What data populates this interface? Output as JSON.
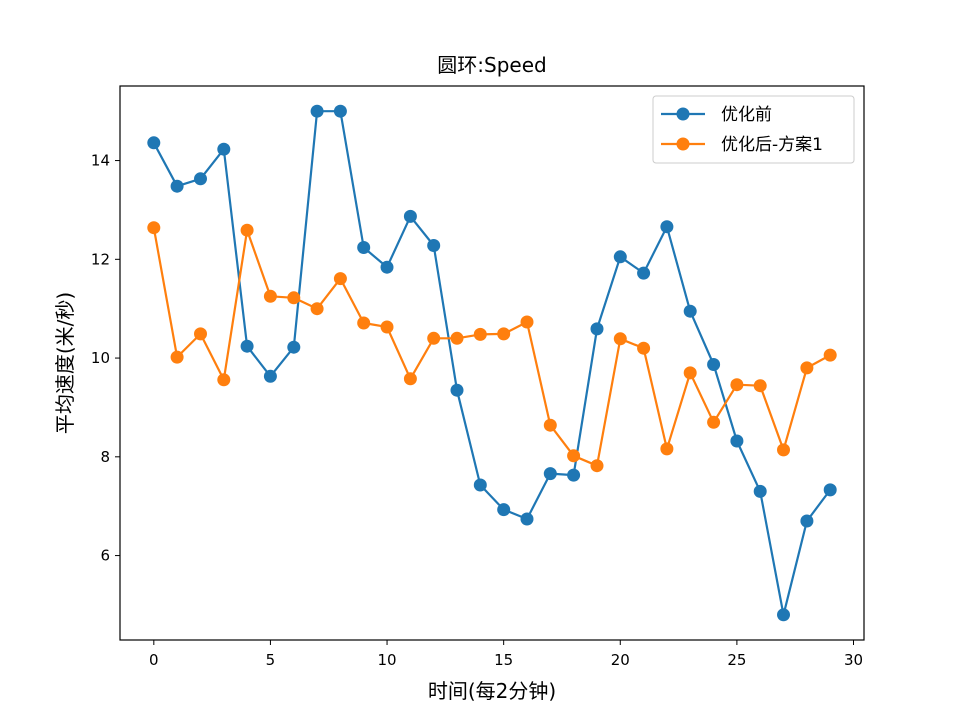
{
  "chart_data": {
    "type": "line",
    "title": "圆环:Speed",
    "xlabel": "时间(每2分钟)",
    "ylabel": "平均速度(米/秒)",
    "xlim": [
      -1.45,
      30.45
    ],
    "ylim": [
      4.29,
      15.51
    ],
    "xticks": [
      0,
      5,
      10,
      15,
      20,
      25,
      30
    ],
    "yticks": [
      6,
      8,
      10,
      12,
      14
    ],
    "grid": false,
    "legend_position": "top-right",
    "x": [
      0,
      1,
      2,
      3,
      4,
      5,
      6,
      7,
      8,
      9,
      10,
      11,
      12,
      13,
      14,
      15,
      16,
      17,
      18,
      19,
      20,
      21,
      22,
      23,
      24,
      25,
      26,
      27,
      28,
      29
    ],
    "series": [
      {
        "name": "优化前",
        "color": "#1f77b4",
        "values": [
          14.36,
          13.48,
          13.63,
          14.23,
          10.24,
          9.63,
          10.22,
          15.0,
          15.0,
          12.24,
          11.84,
          12.87,
          12.28,
          9.35,
          7.43,
          6.93,
          6.74,
          7.66,
          7.63,
          10.59,
          12.05,
          11.72,
          12.66,
          10.95,
          9.87,
          8.32,
          7.3,
          4.8,
          6.7,
          7.33
        ]
      },
      {
        "name": "优化后-方案1",
        "color": "#ff7f0e",
        "values": [
          12.64,
          10.02,
          10.49,
          9.56,
          12.59,
          11.25,
          11.22,
          11.0,
          11.61,
          10.71,
          10.63,
          9.58,
          10.4,
          10.4,
          10.48,
          10.49,
          10.73,
          8.64,
          8.02,
          7.82,
          10.39,
          10.2,
          8.16,
          9.7,
          8.7,
          9.46,
          9.44,
          8.14,
          9.8,
          10.06
        ]
      }
    ]
  }
}
